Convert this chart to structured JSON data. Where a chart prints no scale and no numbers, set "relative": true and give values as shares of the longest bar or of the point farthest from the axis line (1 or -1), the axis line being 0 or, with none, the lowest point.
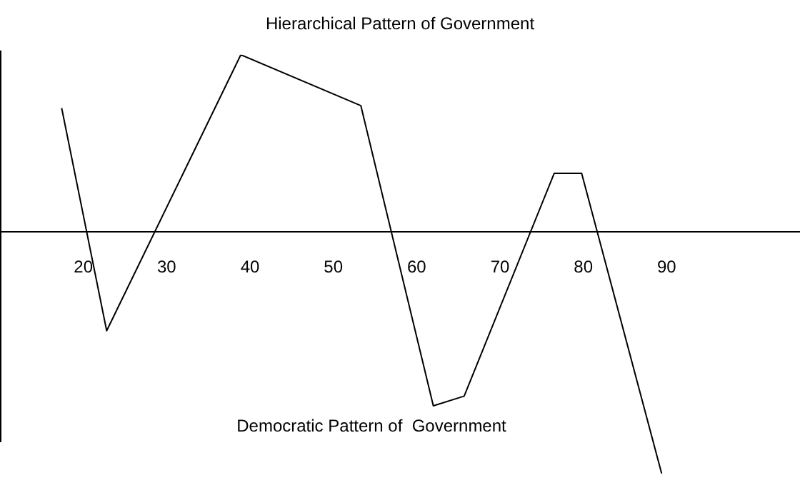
{
  "chart_data": {
    "type": "line",
    "title": "Hierarchical Pattern of Government",
    "annotations": [
      "Democratic Pattern of  Government"
    ],
    "relative": true,
    "x": [
      17.4,
      22.8,
      38.9,
      53.3,
      62.0,
      65.7,
      76.5,
      79.8,
      89.4
    ],
    "series": [
      {
        "color": "#000000",
        "values": [
          0.51,
          -0.41,
          0.73,
          0.52,
          -0.72,
          -0.68,
          0.24,
          0.24,
          -1
        ]
      }
    ],
    "xlim": [
      10,
      106
    ],
    "xticks": [
      20,
      30,
      40,
      50,
      60,
      70,
      80,
      90
    ],
    "grid": false,
    "legend": false,
    "marker": "none",
    "line_style": "solid"
  }
}
